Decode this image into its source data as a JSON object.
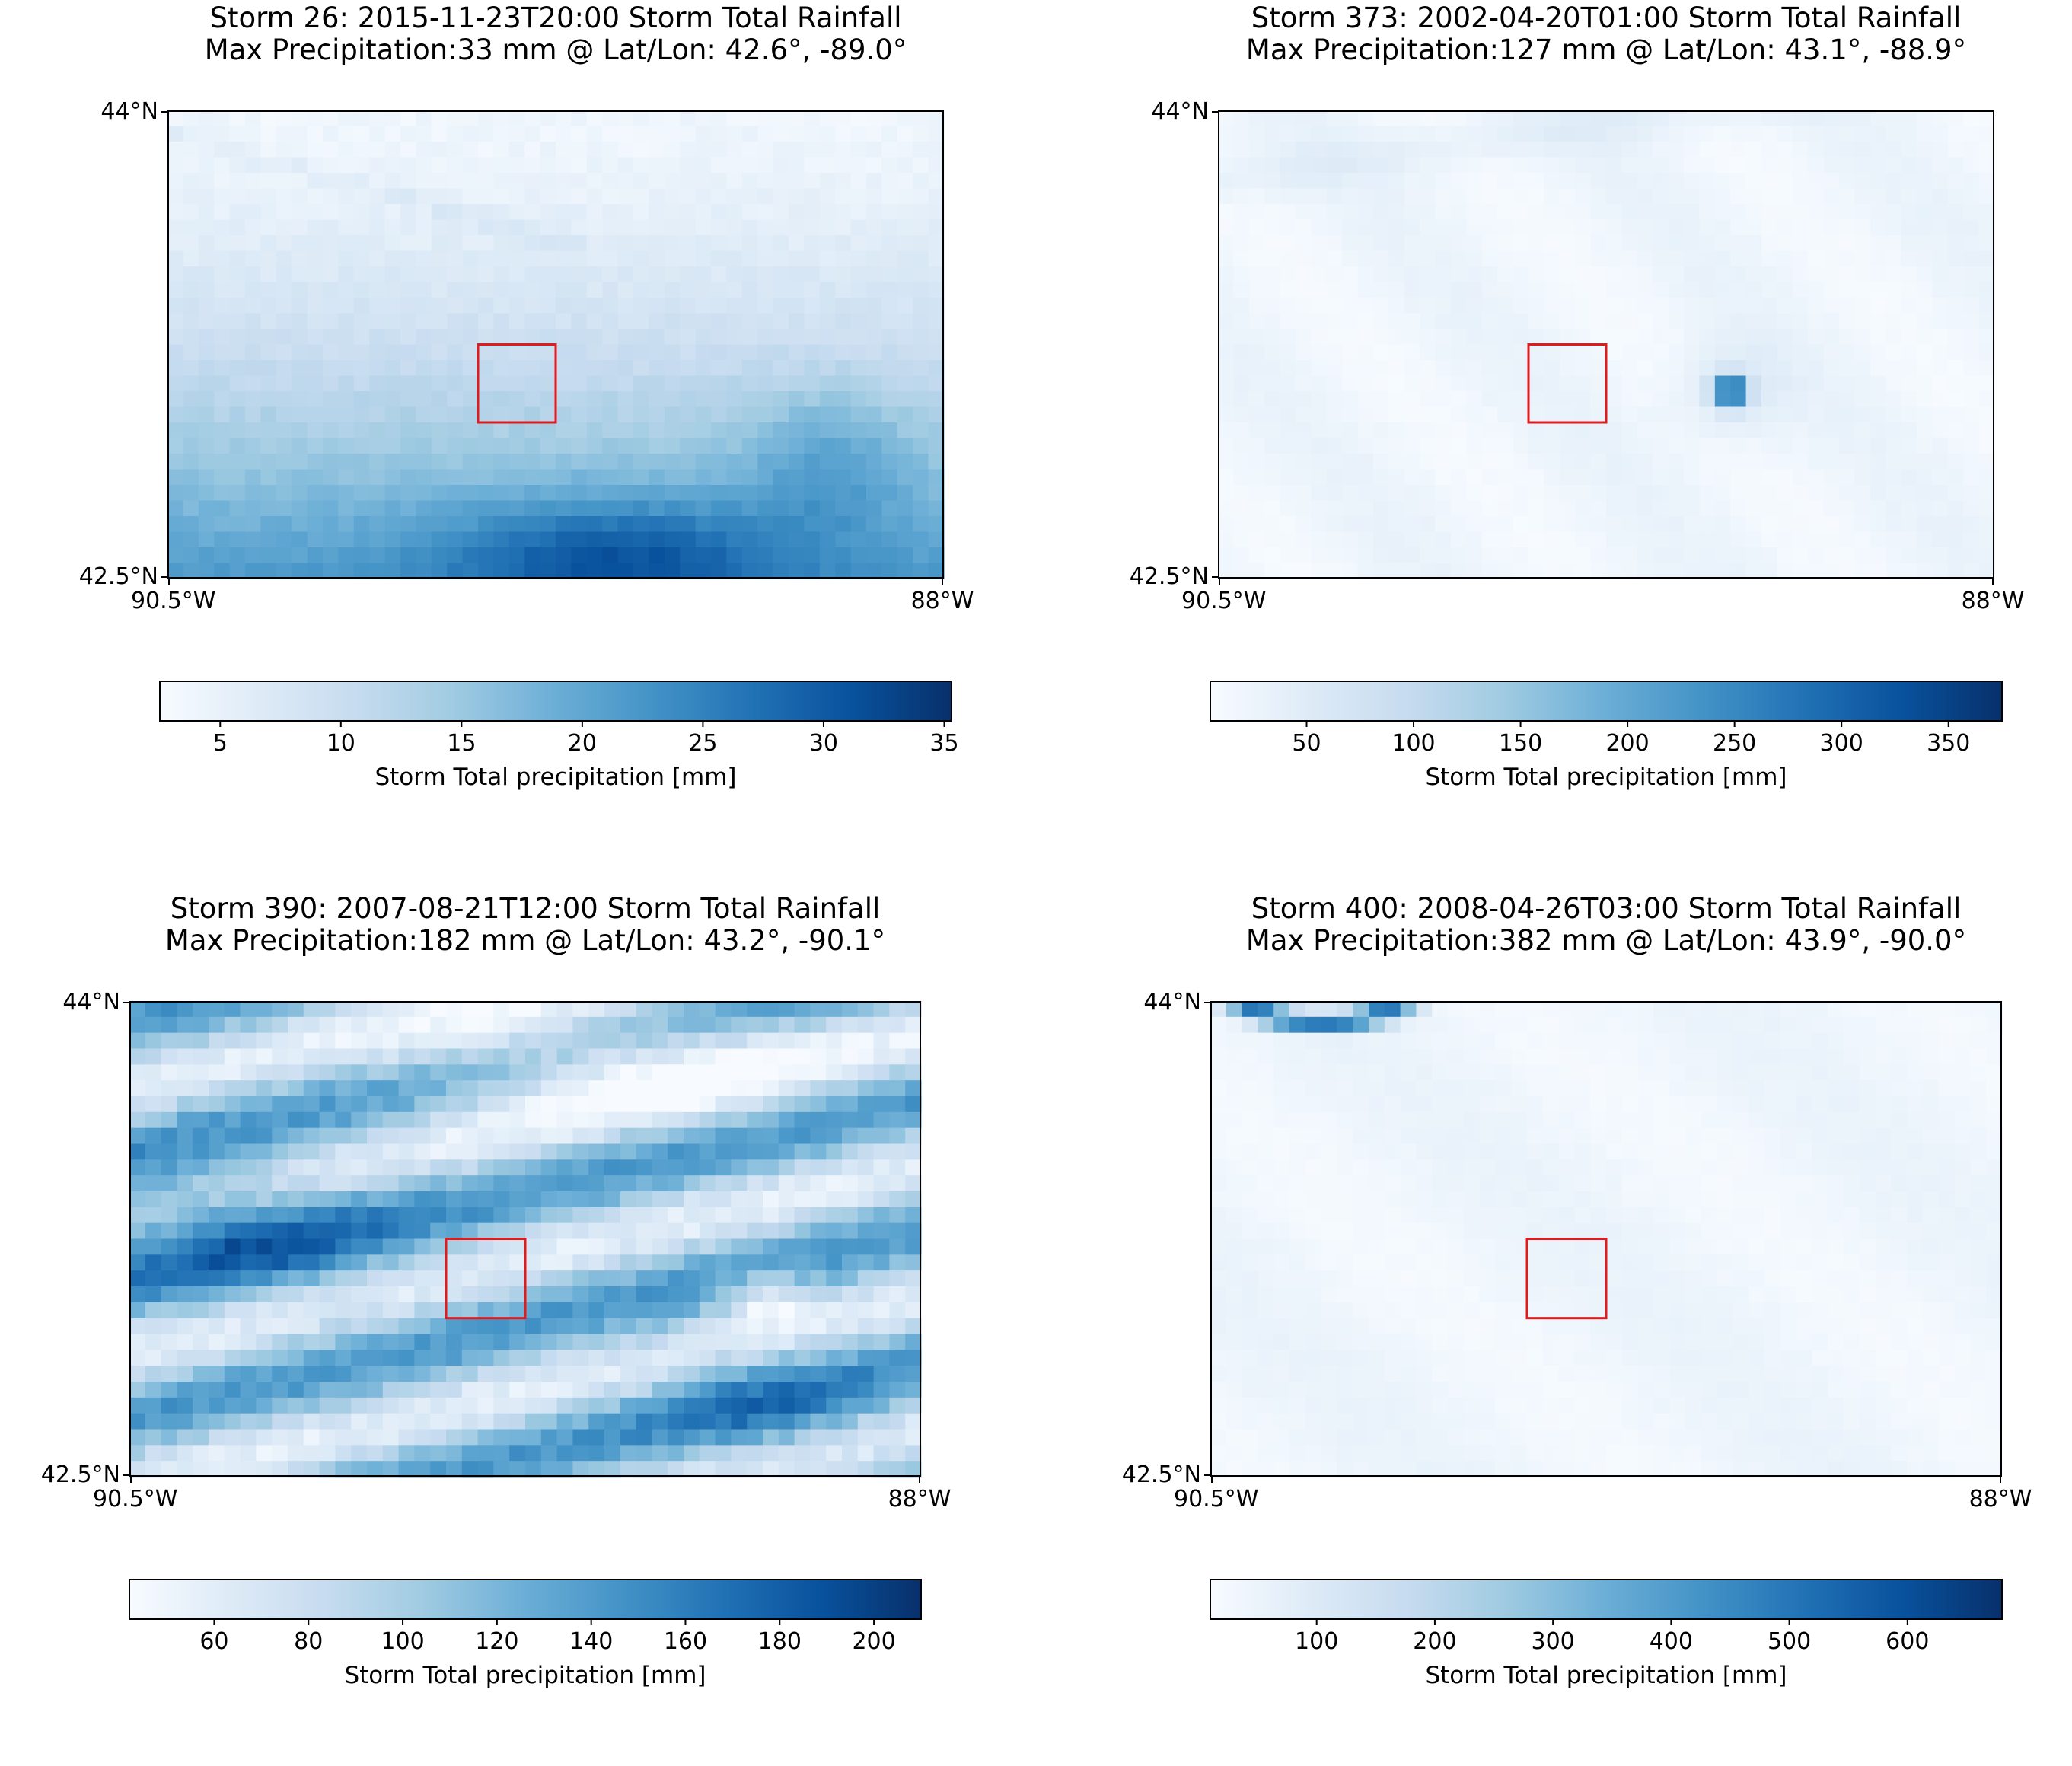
{
  "figure": {
    "panels": [
      {
        "title_line1": "Storm 26: 2015-11-23T20:00 Storm Total Rainfall",
        "title_line2": "Max Precipitation:33 mm @ Lat/Lon:  42.6°, -89.0°",
        "lat_ticks": [
          "44°N",
          "42.5°N"
        ],
        "lon_ticks": [
          "90.5°W",
          "88°W"
        ],
        "colorbar": {
          "label": "Storm Total precipitation [mm]",
          "min": 2.5,
          "max": 35.3,
          "ticks": [
            "5",
            "10",
            "15",
            "20",
            "25",
            "30",
            "35"
          ],
          "tick_values": [
            5,
            10,
            15,
            20,
            25,
            30,
            35
          ]
        },
        "pattern": "gradient-south"
      },
      {
        "title_line1": "Storm 373: 2002-04-20T01:00 Storm Total Rainfall",
        "title_line2": "Max Precipitation:127 mm @ Lat/Lon:  43.1°, -88.9°",
        "lat_ticks": [
          "44°N",
          "42.5°N"
        ],
        "lon_ticks": [
          "90.5°W",
          "88°W"
        ],
        "colorbar": {
          "label": "Storm Total precipitation [mm]",
          "min": 5,
          "max": 375,
          "ticks": [
            "50",
            "100",
            "150",
            "200",
            "250",
            "300",
            "350"
          ],
          "tick_values": [
            50,
            100,
            150,
            200,
            250,
            300,
            350
          ]
        },
        "pattern": "point-peak"
      },
      {
        "title_line1": "Storm 390: 2007-08-21T12:00 Storm Total Rainfall",
        "title_line2": "Max Precipitation:182 mm @ Lat/Lon:  43.2°, -90.1°",
        "lat_ticks": [
          "44°N",
          "42.5°N"
        ],
        "lon_ticks": [
          "90.5°W",
          "88°W"
        ],
        "colorbar": {
          "label": "Storm Total precipitation [mm]",
          "min": 42,
          "max": 210,
          "ticks": [
            "60",
            "80",
            "100",
            "120",
            "140",
            "160",
            "180",
            "200"
          ],
          "tick_values": [
            60,
            80,
            100,
            120,
            140,
            160,
            180,
            200
          ]
        },
        "pattern": "banded"
      },
      {
        "title_line1": "Storm 400: 2008-04-26T03:00 Storm Total Rainfall",
        "title_line2": "Max Precipitation:382 mm @ Lat/Lon:  43.9°, -90.0°",
        "lat_ticks": [
          "44°N",
          "42.5°N"
        ],
        "lon_ticks": [
          "90.5°W",
          "88°W"
        ],
        "colorbar": {
          "label": "Storm Total precipitation [mm]",
          "min": 10,
          "max": 680,
          "ticks": [
            "100",
            "200",
            "300",
            "400",
            "500",
            "600"
          ],
          "tick_values": [
            100,
            200,
            300,
            400,
            500,
            600
          ]
        },
        "pattern": "corner-arc"
      }
    ]
  },
  "chart_data": [
    {
      "type": "heatmap",
      "title": "Storm 26: 2015-11-23T20:00 Storm Total Rainfall\nMax Precipitation:33 mm @ Lat/Lon:  42.6°, -89.0°",
      "lat_range": [
        42.5,
        44.0
      ],
      "lon_range": [
        -90.5,
        -88.0
      ],
      "colorbar_label": "Storm Total precipitation [mm]",
      "colorbar_range": [
        2.5,
        35.3
      ],
      "colormap": "Blues",
      "max_precipitation_mm": 33,
      "max_location": {
        "lat": 42.6,
        "lon": -89.0
      },
      "study_box": {
        "lat": [
          43.0,
          43.25
        ],
        "lon": [
          -89.5,
          -89.25
        ]
      }
    },
    {
      "type": "heatmap",
      "title": "Storm 373: 2002-04-20T01:00 Storm Total Rainfall\nMax Precipitation:127 mm @ Lat/Lon:  43.1°, -88.9°",
      "lat_range": [
        42.5,
        44.0
      ],
      "lon_range": [
        -90.5,
        -88.0
      ],
      "colorbar_label": "Storm Total precipitation [mm]",
      "colorbar_range": [
        5,
        375
      ],
      "colormap": "Blues",
      "max_precipitation_mm": 127,
      "max_location": {
        "lat": 43.1,
        "lon": -88.9
      },
      "study_box": {
        "lat": [
          43.0,
          43.25
        ],
        "lon": [
          -89.5,
          -89.25
        ]
      }
    },
    {
      "type": "heatmap",
      "title": "Storm 390: 2007-08-21T12:00 Storm Total Rainfall\nMax Precipitation:182 mm @ Lat/Lon:  43.2°, -90.1°",
      "lat_range": [
        42.5,
        44.0
      ],
      "lon_range": [
        -90.5,
        -88.0
      ],
      "colorbar_label": "Storm Total precipitation [mm]",
      "colorbar_range": [
        42,
        210
      ],
      "colormap": "Blues",
      "max_precipitation_mm": 182,
      "max_location": {
        "lat": 43.2,
        "lon": -90.1
      },
      "study_box": {
        "lat": [
          43.0,
          43.25
        ],
        "lon": [
          -89.5,
          -89.25
        ]
      }
    },
    {
      "type": "heatmap",
      "title": "Storm 400: 2008-04-26T03:00 Storm Total Rainfall\nMax Precipitation:382 mm @ Lat/Lon:  43.9°, -90.0°",
      "lat_range": [
        42.5,
        44.0
      ],
      "lon_range": [
        -90.5,
        -88.0
      ],
      "colorbar_label": "Storm Total precipitation [mm]",
      "colorbar_range": [
        10,
        680
      ],
      "colormap": "Blues",
      "max_precipitation_mm": 382,
      "max_location": {
        "lat": 43.9,
        "lon": -90.0
      },
      "study_box": {
        "lat": [
          43.0,
          43.25
        ],
        "lon": [
          -89.5,
          -89.25
        ]
      }
    }
  ]
}
